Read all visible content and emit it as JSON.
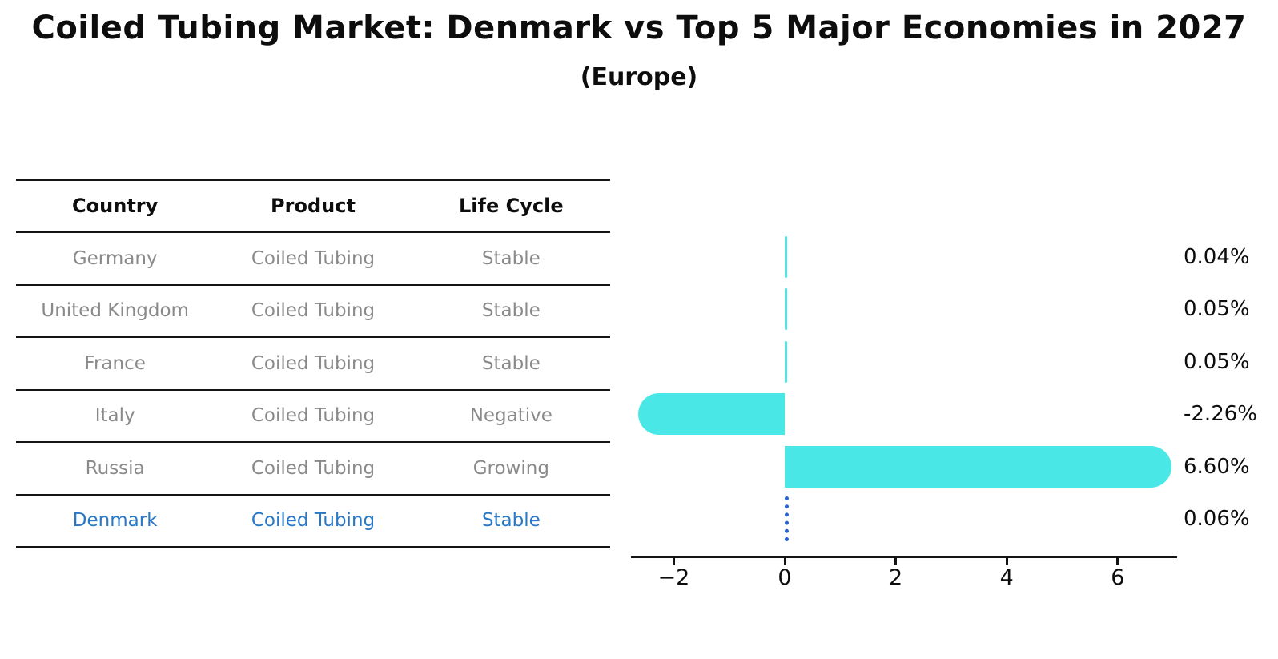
{
  "title": "Coiled Tubing Market: Denmark vs Top 5 Major Economies in 2027",
  "subtitle": "(Europe)",
  "colors": {
    "bar": "#4AE7E7",
    "highlight_text": "#2878C8",
    "highlight_bar_dotted": "#2A62D0",
    "table_text": "#8A8A8A",
    "ink": "#0D0D0D"
  },
  "table": {
    "headers": [
      "Country",
      "Product",
      "Life Cycle"
    ],
    "rows": [
      {
        "country": "Germany",
        "product": "Coiled Tubing",
        "life_cycle": "Stable",
        "highlighted": false
      },
      {
        "country": "United Kingdom",
        "product": "Coiled Tubing",
        "life_cycle": "Stable",
        "highlighted": false
      },
      {
        "country": "France",
        "product": "Coiled Tubing",
        "life_cycle": "Stable",
        "highlighted": false
      },
      {
        "country": "Italy",
        "product": "Coiled Tubing",
        "life_cycle": "Negative",
        "highlighted": false
      },
      {
        "country": "Russia",
        "product": "Coiled Tubing",
        "life_cycle": "Growing",
        "highlighted": false
      },
      {
        "country": "Denmark",
        "product": "Coiled Tubing",
        "life_cycle": "Stable",
        "highlighted": true
      }
    ]
  },
  "chart_data": {
    "type": "bar",
    "orientation": "horizontal",
    "title": "Coiled Tubing Market: Denmark vs Top 5 Major Economies in 2027",
    "subtitle": "(Europe)",
    "categories": [
      "Germany",
      "United Kingdom",
      "France",
      "Italy",
      "Russia",
      "Denmark"
    ],
    "values": [
      0.04,
      0.05,
      0.05,
      -2.26,
      6.6,
      0.06
    ],
    "value_labels": [
      "0.04%",
      "0.05%",
      "0.05%",
      "-2.26%",
      "6.60%",
      "0.06%"
    ],
    "unit": "percent CAGR-style growth value",
    "x_ticks": [
      -2,
      0,
      2,
      4,
      6
    ],
    "x_tick_labels": [
      "−2",
      "0",
      "2",
      "4",
      "6"
    ],
    "xlim": [
      -2.8,
      7.1
    ],
    "grid": false,
    "legend": "none",
    "highlight_category": "Denmark",
    "highlight_style": "dotted-blue-outline"
  }
}
